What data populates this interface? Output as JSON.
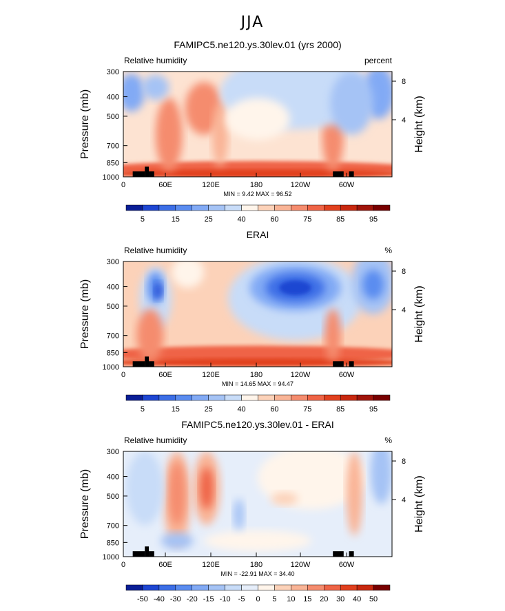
{
  "page_title": "JJA",
  "chart_data": [
    {
      "type": "heatmap",
      "title": "FAMIPC5.ne120.ys.30lev.01 (yrs 2000)",
      "left_label": "Relative humidity",
      "right_label": "percent",
      "ylabel": "Pressure (mb)",
      "ylabel_right": "Height (km)",
      "x_ticks": [
        "0",
        "60E",
        "120E",
        "180",
        "120W",
        "60W"
      ],
      "y_ticks": [
        "300",
        "400",
        "500",
        "700",
        "850",
        "1000"
      ],
      "height_ticks": [
        "8",
        "4"
      ],
      "stats": {
        "min_label": "MIN =",
        "min": "9.42",
        "max_label": "MAX =",
        "max": "96.52"
      },
      "ylim": [
        1000,
        300
      ],
      "colorbar": {
        "labels": [
          "5",
          "15",
          "25",
          "40",
          "60",
          "75",
          "85",
          "95"
        ],
        "colors": [
          "#0a1e96",
          "#1e46d2",
          "#3c6ee6",
          "#5a8cf0",
          "#82aaf5",
          "#a5c3f5",
          "#c8dcf8",
          "#fff5eb",
          "#fcd2b9",
          "#f9b496",
          "#f58c6e",
          "#ef6446",
          "#e1401e",
          "#c8280f",
          "#a0140a",
          "#780000"
        ]
      }
    },
    {
      "type": "heatmap",
      "title": "ERAI",
      "left_label": "Relative humidity",
      "right_label": "%",
      "ylabel": "Pressure (mb)",
      "ylabel_right": "Height (km)",
      "x_ticks": [
        "0",
        "60E",
        "120E",
        "180",
        "120W",
        "60W"
      ],
      "y_ticks": [
        "300",
        "400",
        "500",
        "700",
        "850",
        "1000"
      ],
      "height_ticks": [
        "8",
        "4"
      ],
      "stats": {
        "min_label": "MIN =",
        "min": "14.65",
        "max_label": "MAX =",
        "max": "94.47"
      },
      "ylim": [
        1000,
        300
      ],
      "colorbar": {
        "labels": [
          "5",
          "15",
          "25",
          "40",
          "60",
          "75",
          "85",
          "95"
        ],
        "colors": [
          "#0a1e96",
          "#1e46d2",
          "#3c6ee6",
          "#5a8cf0",
          "#82aaf5",
          "#a5c3f5",
          "#c8dcf8",
          "#fff5eb",
          "#fcd2b9",
          "#f9b496",
          "#f58c6e",
          "#ef6446",
          "#e1401e",
          "#c8280f",
          "#a0140a",
          "#780000"
        ]
      }
    },
    {
      "type": "heatmap",
      "title": "FAMIPC5.ne120.ys.30lev.01 - ERAI",
      "left_label": "Relative humidity",
      "right_label": "%",
      "ylabel": "Pressure (mb)",
      "ylabel_right": "Height (km)",
      "x_ticks": [
        "0",
        "60E",
        "120E",
        "180",
        "120W",
        "60W"
      ],
      "y_ticks": [
        "300",
        "400",
        "500",
        "700",
        "850",
        "1000"
      ],
      "height_ticks": [
        "8",
        "4"
      ],
      "stats": {
        "min_label": "MIN =",
        "min": "-22.91",
        "max_label": "MAX =",
        "max": "34.40"
      },
      "ylim": [
        1000,
        300
      ],
      "colorbar": {
        "labels": [
          "-50",
          "-40",
          "-30",
          "-20",
          "-15",
          "-10",
          "-5",
          "0",
          "5",
          "10",
          "15",
          "20",
          "30",
          "40",
          "50"
        ],
        "colors": [
          "#0a1e96",
          "#1e46d2",
          "#3c6ee6",
          "#5a8cf0",
          "#82aaf5",
          "#a5c3f5",
          "#c8dcf8",
          "#e6eefa",
          "#fff5eb",
          "#fcd2b9",
          "#f9b496",
          "#f58c6e",
          "#ef6446",
          "#e1401e",
          "#c8280f",
          "#780000"
        ]
      }
    }
  ]
}
